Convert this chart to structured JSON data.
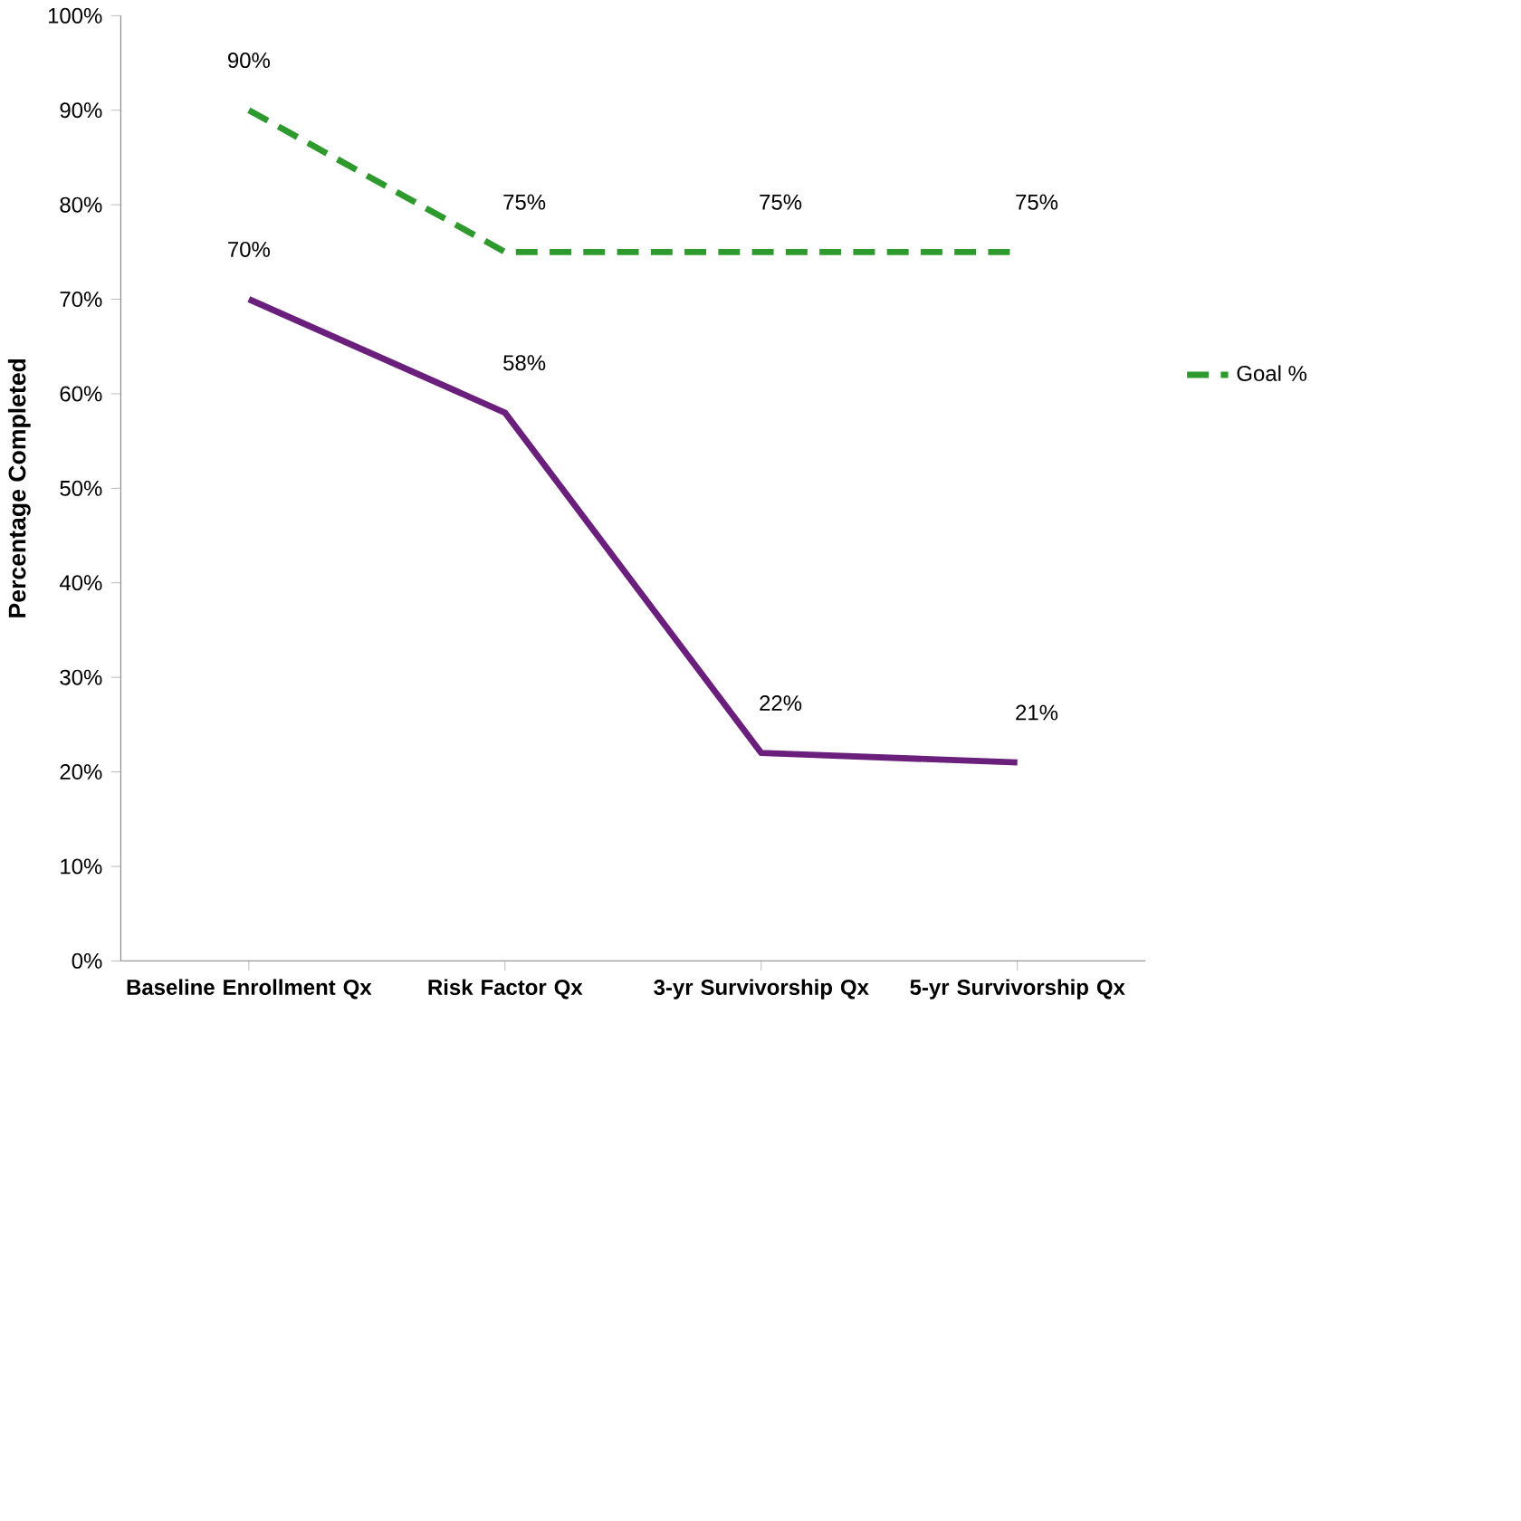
{
  "chart_data": {
    "type": "line",
    "ylabel": "Percentage Completed",
    "categories": [
      "Baseline Enrollment Qx",
      "Risk Factor Qx",
      "3-yr Survivorship Qx",
      "5-yr Survivorship Qx"
    ],
    "series": [
      {
        "name": "Goal %",
        "color": "#2e9a2e",
        "line_style": "dashed",
        "values": [
          90,
          75,
          75,
          75
        ],
        "value_labels": [
          "90%",
          "75%",
          "75%",
          "75%"
        ]
      },
      {
        "color": "#6b1f7c",
        "line_style": "solid",
        "values": [
          70,
          58,
          22,
          21
        ],
        "value_labels": [
          "70%",
          "58%",
          "22%",
          "21%"
        ]
      }
    ],
    "ylim": [
      0,
      100
    ],
    "yticks": [
      {
        "value": 0,
        "label": "0%"
      },
      {
        "value": 10,
        "label": "10%"
      },
      {
        "value": 20,
        "label": "20%"
      },
      {
        "value": 30,
        "label": "30%"
      },
      {
        "value": 40,
        "label": "40%"
      },
      {
        "value": 50,
        "label": "50%"
      },
      {
        "value": 60,
        "label": "60%"
      },
      {
        "value": 70,
        "label": "70%"
      },
      {
        "value": 80,
        "label": "80%"
      },
      {
        "value": 90,
        "label": "90%"
      },
      {
        "value": 100,
        "label": "100%"
      }
    ],
    "grid": false,
    "legend": "right",
    "marker": "none"
  }
}
